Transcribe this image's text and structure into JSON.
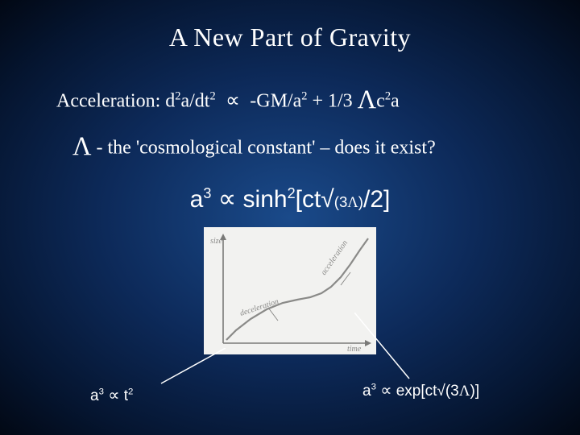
{
  "title": "A New Part of Gravity",
  "accel_label": "Acceleration:",
  "lambda_line_pre": " - the 'cosmological constant' – does it exist?",
  "bottom_left_rel": " t",
  "bottom_right_rel": " exp[ct√(3",
  "bottom_right_tail": ")]",
  "chart": {
    "type": "line-sketch",
    "background": "#f2f2f0",
    "axis_color": "#7a7a78",
    "axis_width": 1.6,
    "curve_color": "#8a8a88",
    "curve_width": 2.2,
    "x_label": "time",
    "y_label": "size",
    "anno_left": "deceleration",
    "anno_right": "acceleration",
    "label_color": "#8a8a88",
    "label_fontsize": 10,
    "points": [
      [
        28,
        140
      ],
      [
        40,
        128
      ],
      [
        58,
        114
      ],
      [
        78,
        102
      ],
      [
        98,
        94
      ],
      [
        116,
        90
      ],
      [
        132,
        87
      ],
      [
        146,
        82
      ],
      [
        158,
        74
      ],
      [
        170,
        62
      ],
      [
        182,
        46
      ],
      [
        194,
        28
      ],
      [
        204,
        14
      ]
    ]
  },
  "leader_color": "#ffffff",
  "leader_width": 1.5,
  "colors": {
    "text": "#ffffff",
    "bg_center": "#1a4a8a",
    "bg_edge": "#020814"
  }
}
